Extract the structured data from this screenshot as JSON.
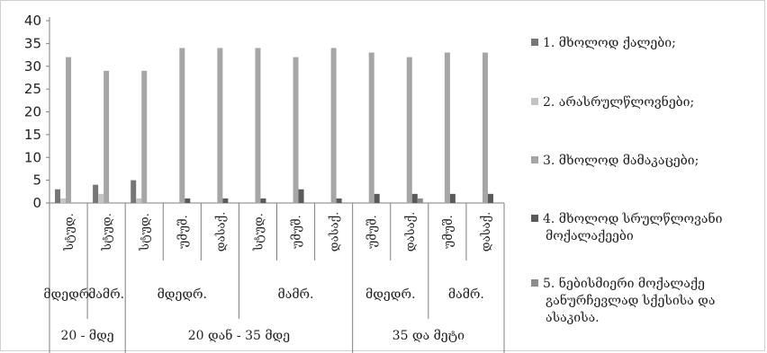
{
  "chart_data": {
    "type": "bar",
    "ylim": [
      0,
      40
    ],
    "yticks": [
      0,
      5,
      10,
      15,
      20,
      25,
      30,
      35,
      40
    ],
    "grid": false,
    "legend_position": "right",
    "categories": [
      "სტუდ.",
      "სტუდ.",
      "სტუდ.",
      "უმუშ.",
      "დასაქ.",
      "სტუდ.",
      "უმუშ.",
      "დასაქ.",
      "უმუშ.",
      "დასაქ.",
      "უმუშ.",
      "დასაქ."
    ],
    "group_labels": [
      {
        "label": "მდედრ.",
        "span": 1
      },
      {
        "label": "მამრ.",
        "span": 1
      },
      {
        "label": "მდედრ.",
        "span": 3
      },
      {
        "label": "მამრ.",
        "span": 3
      },
      {
        "label": "მდედრ.",
        "span": 2
      },
      {
        "label": "მამრ.",
        "span": 2
      }
    ],
    "age_groups": [
      {
        "label": "20 - მდე",
        "span": 2
      },
      {
        "label": "20 დან - 35 მდე",
        "span": 6
      },
      {
        "label": "35 და მეტი",
        "span": 4
      }
    ],
    "series": [
      {
        "name": "1. მხოლოდ ქალები;",
        "color": "#767676",
        "values": [
          3,
          4,
          5,
          0,
          0,
          0,
          0,
          0,
          0,
          0,
          0,
          0
        ]
      },
      {
        "name": "2. არასრულწლოვნები;",
        "color": "#c4c4c4",
        "values": [
          1,
          2,
          1,
          0,
          0,
          0,
          0,
          0,
          0,
          0,
          0,
          0
        ]
      },
      {
        "name": "3. მხოლოდ მამაკაცები;",
        "color": "#a6a6a6",
        "values": [
          32,
          29,
          29,
          34,
          34,
          34,
          32,
          34,
          33,
          32,
          33,
          33
        ]
      },
      {
        "name": "4. მხოლოდ სრულწლოვანი მოქალაქეები",
        "color": "#5a5a5a",
        "values": [
          0,
          0,
          0,
          1,
          1,
          1,
          3,
          1,
          2,
          2,
          2,
          2
        ]
      },
      {
        "name": "5. ნებისმიერი მოქალაქე განურჩევლად სქესისა და ასაკისა.",
        "color": "#8c8c8c",
        "values": [
          0,
          0,
          0,
          0,
          0,
          0,
          0,
          0,
          0,
          1,
          0,
          0
        ]
      }
    ]
  }
}
